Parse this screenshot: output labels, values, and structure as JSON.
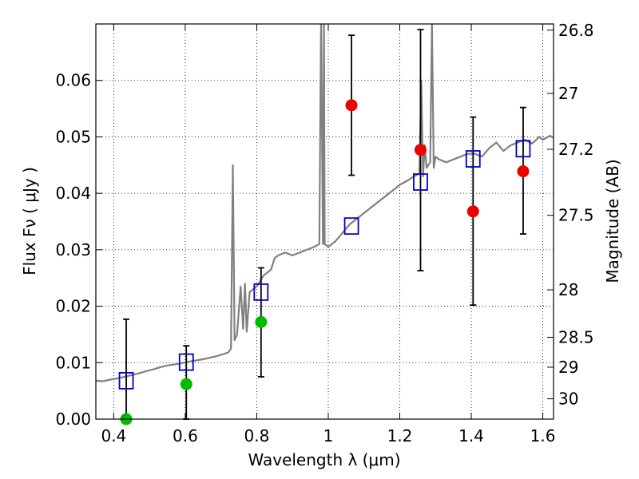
{
  "chart_data": {
    "type": "scatter",
    "xlabel": "Wavelength  λ (μm)",
    "ylabel": "Flux  Fν  ( μJy )",
    "ylabel_right": "Magnitude (AB)",
    "xlim": [
      0.35,
      1.63
    ],
    "ylim": [
      0.0,
      0.07
    ],
    "grid": true,
    "x_ticks": [
      0.4,
      0.6,
      0.8,
      1.0,
      1.2,
      1.4,
      1.6
    ],
    "x_tick_labels": [
      "0.4",
      "0.6",
      "0.8",
      "1",
      "1.2",
      "1.4",
      "1.6"
    ],
    "y_ticks": [
      0.0,
      0.01,
      0.02,
      0.03,
      0.04,
      0.05,
      0.06
    ],
    "y_tick_labels": [
      "0.00",
      "0.01",
      "0.02",
      "0.03",
      "0.04",
      "0.05",
      "0.06"
    ],
    "right_ticks": [
      {
        "flux": 0.0689,
        "label": "26.8"
      },
      {
        "flux": 0.0577,
        "label": "27"
      },
      {
        "flux": 0.0478,
        "label": "27.2"
      },
      {
        "flux": 0.0361,
        "label": "27.5"
      },
      {
        "flux": 0.0229,
        "label": "28"
      },
      {
        "flux": 0.0145,
        "label": "28.5"
      },
      {
        "flux": 0.0092,
        "label": "29"
      },
      {
        "flux": 0.0036,
        "label": "30"
      }
    ],
    "colors": {
      "spectrum": "#808080",
      "model_box": "#0000cc",
      "detection_red": "#ee0000",
      "detection_green": "#00bb00",
      "errorbar": "#000000"
    },
    "series": [
      {
        "kind": "spectrum",
        "x": [
          0.35,
          0.37,
          0.39,
          0.41,
          0.43,
          0.45,
          0.47,
          0.49,
          0.51,
          0.53,
          0.55,
          0.57,
          0.59,
          0.61,
          0.63,
          0.65,
          0.67,
          0.69,
          0.71,
          0.72,
          0.728,
          0.733,
          0.738,
          0.745,
          0.755,
          0.762,
          0.767,
          0.772,
          0.78,
          0.8,
          0.82,
          0.84,
          0.85,
          0.86,
          0.88,
          0.9,
          0.92,
          0.94,
          0.96,
          0.975,
          0.98,
          0.985,
          0.988,
          0.99,
          1.0,
          1.02,
          1.04,
          1.06,
          1.08,
          1.1,
          1.12,
          1.14,
          1.16,
          1.18,
          1.2,
          1.22,
          1.24,
          1.255,
          1.26,
          1.265,
          1.27,
          1.275,
          1.28,
          1.285,
          1.29,
          1.295,
          1.3,
          1.31,
          1.33,
          1.35,
          1.37,
          1.39,
          1.41,
          1.43,
          1.45,
          1.47,
          1.49,
          1.51,
          1.53,
          1.55,
          1.57,
          1.59,
          1.6,
          1.62,
          1.63
        ],
        "y": [
          0.0068,
          0.0067,
          0.007,
          0.0072,
          0.0075,
          0.0078,
          0.0081,
          0.0085,
          0.0088,
          0.0092,
          0.0095,
          0.0097,
          0.0099,
          0.0102,
          0.0104,
          0.0106,
          0.0109,
          0.0112,
          0.0116,
          0.0118,
          0.0125,
          0.045,
          0.014,
          0.015,
          0.0235,
          0.016,
          0.024,
          0.0155,
          0.0225,
          0.0235,
          0.0255,
          0.0265,
          0.0285,
          0.029,
          0.0295,
          0.029,
          0.0295,
          0.03,
          0.0305,
          0.031,
          0.0715,
          0.031,
          0.0715,
          0.031,
          0.0305,
          0.0315,
          0.033,
          0.0345,
          0.0355,
          0.0365,
          0.0375,
          0.0385,
          0.0395,
          0.0405,
          0.0415,
          0.0422,
          0.043,
          0.0435,
          0.06,
          0.043,
          0.0485,
          0.0445,
          0.045,
          0.0455,
          0.07,
          0.0445,
          0.0465,
          0.046,
          0.0455,
          0.046,
          0.0465,
          0.047,
          0.047,
          0.0465,
          0.048,
          0.049,
          0.0475,
          0.0485,
          0.049,
          0.0495,
          0.0488,
          0.05,
          0.0495,
          0.0502,
          0.0498
        ]
      },
      {
        "kind": "model",
        "x": [
          0.435,
          0.603,
          0.812,
          1.065,
          1.258,
          1.405,
          1.545
        ],
        "y": [
          0.0068,
          0.0101,
          0.0225,
          0.0342,
          0.042,
          0.0461,
          0.0479
        ]
      },
      {
        "kind": "detection_red",
        "x": [
          1.065,
          1.258,
          1.405,
          1.545
        ],
        "y": [
          0.0556,
          0.0477,
          0.0368,
          0.0439
        ],
        "err_low": [
          0.0432,
          0.0263,
          0.0202,
          0.0328
        ],
        "err_high": [
          0.068,
          0.069,
          0.0535,
          0.0552
        ]
      },
      {
        "kind": "detection_green",
        "x": [
          0.435,
          0.603,
          0.812
        ],
        "y": [
          0.0,
          0.0062,
          0.0172
        ],
        "err_low": [
          0.0,
          0.0,
          0.0075
        ],
        "err_high": [
          0.0177,
          0.013,
          0.0268
        ]
      }
    ]
  }
}
